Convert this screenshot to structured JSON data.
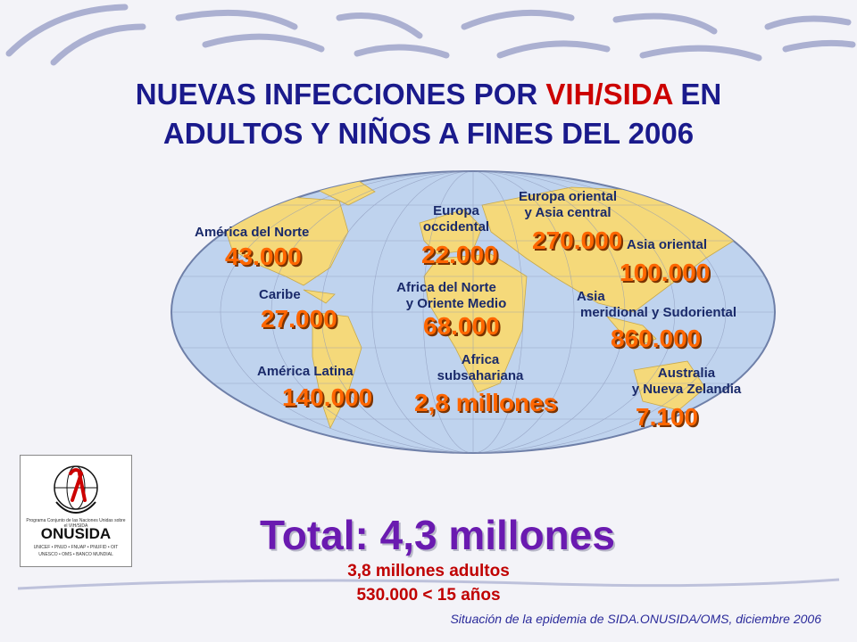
{
  "slide": {
    "title_part1": "NUEVAS INFECCIONES POR ",
    "title_highlight": "VIH/SIDA",
    "title_part2": " EN",
    "title_line2": "ADULTOS Y NIÑOS A FINES DEL 2006",
    "total": "Total: 4,3 millones",
    "adults": "3,8 millones adultos",
    "children": "530.000 < 15 años",
    "source": "Situación de la epidemia de SIDA.ONUSIDA/OMS, diciembre 2006"
  },
  "regions": {
    "north_america": {
      "name": "América del Norte",
      "value": "43.000"
    },
    "caribbean": {
      "name": "Caribe",
      "value": "27.000"
    },
    "latin_america": {
      "name": "América Latina",
      "value": "140.000"
    },
    "western_europe": {
      "name_1": "Europa",
      "name_2": "occidental",
      "value": "22.000"
    },
    "north_africa": {
      "name_1": "Africa del Norte",
      "name_2": "y Oriente Medio",
      "value": "68.000"
    },
    "subsaharan": {
      "name_1": "Africa",
      "name_2": "subsahariana",
      "value": "2,8 millones"
    },
    "eastern_europe": {
      "name_1": "Europa oriental",
      "name_2": "y Asia central",
      "value": "270.000"
    },
    "east_asia": {
      "name": "Asia oriental",
      "value": "100.000"
    },
    "south_asia": {
      "name_1": "Asia",
      "name_2": "meridional y Sudoriental",
      "value": "860.000"
    },
    "australia": {
      "name_1": "Australia",
      "name_2": "y Nueva Zelandia",
      "value": "7.100"
    }
  },
  "logo": {
    "name": "ONUSIDA",
    "tagline": "Programa Conjunto de las Naciones Unidas sobre el VIH/SIDA",
    "sponsors_1": "UNICEF • PNUD • FNUAP • PNUFID • OIT",
    "sponsors_2": "UNESCO • OMS • BANCO MUNDIAL"
  },
  "colors": {
    "title": "#1a1a8c",
    "highlight": "#cc0000",
    "value": "#ff6600",
    "total": "#6a1ab0",
    "land": "#f5d97a",
    "ocean": "#bfd3ee"
  }
}
